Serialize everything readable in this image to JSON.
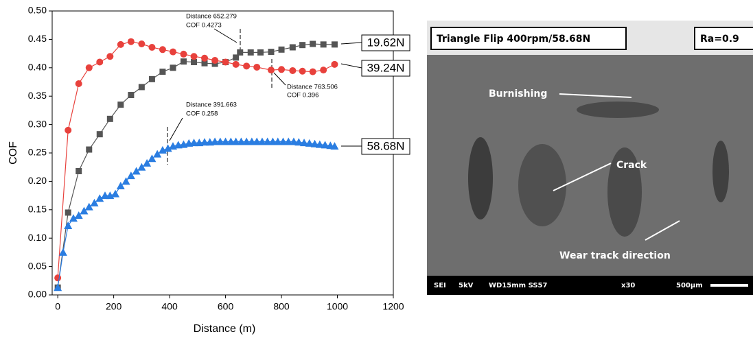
{
  "chart_data": {
    "type": "line",
    "x_label": "Distance (m)",
    "y_label": "COF",
    "xlim": [
      -20,
      1200
    ],
    "xticks": [
      0,
      200,
      400,
      600,
      800,
      1000,
      1200
    ],
    "ylim": [
      0,
      0.5
    ],
    "yticks": [
      {
        "value": 0,
        "label": "0.00"
      },
      {
        "value": 0.05,
        "label": "0.05"
      },
      {
        "value": 0.1,
        "label": "0.10"
      },
      {
        "value": 0.15,
        "label": "0.15"
      },
      {
        "value": 0.2,
        "label": "0.20"
      },
      {
        "value": 0.25,
        "label": "0.25"
      },
      {
        "value": 0.3,
        "label": "0.30"
      },
      {
        "value": 0.35,
        "label": "0.35"
      },
      {
        "value": 0.4,
        "label": "0.40"
      },
      {
        "value": 0.45,
        "label": "0.45"
      },
      {
        "value": 0.5,
        "label": "0.50"
      }
    ],
    "series": [
      {
        "name": "19.62N",
        "color": "#555555",
        "marker": "square",
        "x": [
          0,
          37,
          75,
          112,
          150,
          187,
          225,
          262,
          300,
          337,
          375,
          412,
          450,
          487,
          525,
          562,
          600,
          637,
          652,
          690,
          725,
          763,
          800,
          840,
          875,
          912,
          950,
          990
        ],
        "values": [
          0.013,
          0.145,
          0.218,
          0.256,
          0.283,
          0.31,
          0.335,
          0.352,
          0.366,
          0.38,
          0.393,
          0.4,
          0.411,
          0.41,
          0.408,
          0.407,
          0.41,
          0.418,
          0.427,
          0.427,
          0.427,
          0.428,
          0.432,
          0.436,
          0.44,
          0.442,
          0.441,
          0.441
        ]
      },
      {
        "name": "39.24N",
        "color": "#e8413c",
        "marker": "circle",
        "x": [
          0,
          37,
          75,
          112,
          150,
          187,
          225,
          262,
          300,
          337,
          375,
          412,
          450,
          487,
          525,
          562,
          600,
          637,
          675,
          712,
          763,
          800,
          840,
          875,
          912,
          950,
          990
        ],
        "values": [
          0.03,
          0.29,
          0.372,
          0.4,
          0.41,
          0.42,
          0.441,
          0.446,
          0.442,
          0.436,
          0.432,
          0.428,
          0.424,
          0.42,
          0.417,
          0.413,
          0.41,
          0.406,
          0.403,
          0.401,
          0.396,
          0.397,
          0.395,
          0.394,
          0.393,
          0.396,
          0.406
        ]
      },
      {
        "name": "58.68N",
        "color": "#2a7de1",
        "marker": "triangle",
        "x": [
          0,
          19,
          37,
          56,
          75,
          94,
          112,
          131,
          150,
          169,
          187,
          206,
          225,
          244,
          262,
          281,
          300,
          319,
          337,
          356,
          375,
          394,
          412,
          431,
          450,
          469,
          487,
          506,
          525,
          544,
          562,
          581,
          600,
          619,
          637,
          656,
          675,
          694,
          712,
          731,
          750,
          769,
          787,
          806,
          825,
          844,
          862,
          881,
          900,
          919,
          937,
          956,
          975,
          990
        ],
        "values": [
          0.013,
          0.075,
          0.122,
          0.135,
          0.14,
          0.148,
          0.155,
          0.162,
          0.17,
          0.175,
          0.175,
          0.178,
          0.192,
          0.2,
          0.21,
          0.218,
          0.225,
          0.232,
          0.24,
          0.248,
          0.255,
          0.258,
          0.262,
          0.264,
          0.265,
          0.267,
          0.268,
          0.268,
          0.269,
          0.269,
          0.27,
          0.27,
          0.27,
          0.27,
          0.27,
          0.27,
          0.27,
          0.27,
          0.27,
          0.27,
          0.27,
          0.27,
          0.27,
          0.27,
          0.27,
          0.27,
          0.269,
          0.268,
          0.267,
          0.266,
          0.265,
          0.264,
          0.263,
          0.262
        ]
      }
    ],
    "annotations": [
      [
        "Distance 652.279",
        "COF 0.4273"
      ],
      [
        "Distance 763.506",
        "COF 0.396"
      ],
      [
        "Distance 391.663",
        "COF 0.258"
      ]
    ]
  },
  "image": {
    "title": "Triangle Flip 400rpm/58.68N",
    "roughness": "Ra=0.9",
    "labels": [
      "Burnishing",
      "Crack",
      "Wear track direction"
    ],
    "footer": [
      "SEI",
      "5kV",
      "WD15mm SS57",
      "x30",
      "500µm"
    ]
  }
}
